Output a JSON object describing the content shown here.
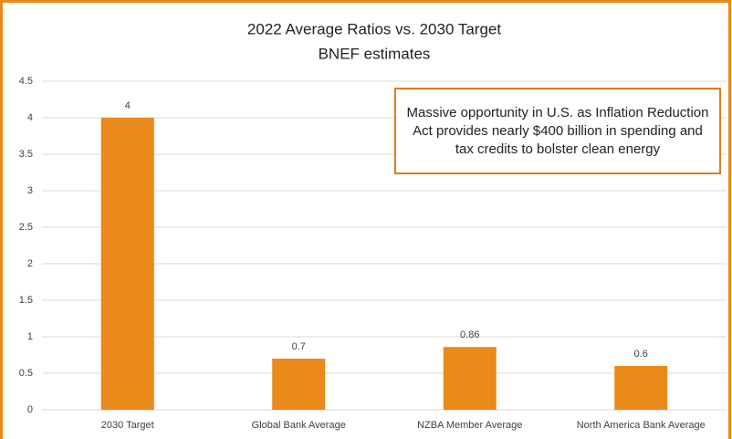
{
  "chart_data": {
    "type": "bar",
    "title": "2022 Average Ratios vs. 2030 Target",
    "subtitle": "BNEF estimates",
    "annotation": "Massive opportunity in U.S. as Inflation Reduction Act provides nearly $400 billion in spending and tax credits to bolster clean energy",
    "categories": [
      "2030 Target",
      "Global Bank Average",
      "NZBA Member Average",
      "North America Bank Average"
    ],
    "values": [
      4,
      0.7,
      0.86,
      0.6
    ],
    "color": "#e8891a",
    "ylim": [
      0,
      4.5
    ],
    "yticks": [
      0,
      0.5,
      1,
      1.5,
      2,
      2.5,
      3,
      3.5,
      4,
      4.5
    ],
    "grid": true
  }
}
